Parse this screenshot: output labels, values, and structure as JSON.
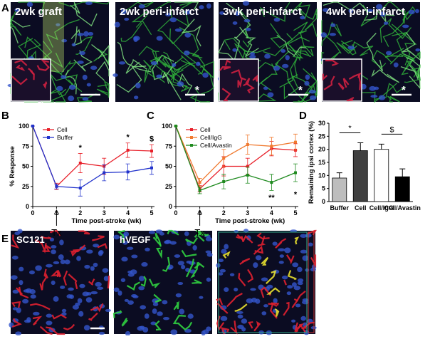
{
  "panel_labels": [
    "A",
    "B",
    "C",
    "D",
    "E"
  ],
  "images_a": [
    {
      "label": "2wk graft"
    },
    {
      "label": "2wk peri-infarct",
      "marker": "*"
    },
    {
      "label": "3wk peri-infarct",
      "marker": "*"
    },
    {
      "label": "4wk peri-infarct",
      "marker": "*"
    }
  ],
  "images_e": [
    {
      "label": "SC121"
    },
    {
      "label": "hVEGF"
    },
    {}
  ],
  "chart_data": [
    {
      "type": "line",
      "x": [
        0,
        1,
        2,
        3,
        4,
        5
      ],
      "xlim": [
        0,
        5
      ],
      "ylim": [
        0,
        100
      ],
      "xticks": [
        0,
        1,
        2,
        3,
        4,
        5
      ],
      "yticks": [
        0,
        25,
        50,
        75,
        100
      ],
      "xlabel": "Time post-stroke (wk)",
      "ylabel": "% Response",
      "arrow_x": 1,
      "arrow_label": "Tx",
      "series": [
        {
          "name": "Cell",
          "color": "#e8202a",
          "values": [
            100,
            25,
            54,
            50,
            70,
            69
          ],
          "errors": [
            0,
            4,
            12,
            10,
            9,
            8
          ]
        },
        {
          "name": "Buffer",
          "color": "#2233cc",
          "values": [
            100,
            25,
            23,
            42,
            43,
            48
          ],
          "errors": [
            0,
            3,
            10,
            10,
            10,
            8
          ]
        }
      ],
      "annotations": [
        {
          "x": 2,
          "y": 70,
          "text": "*"
        },
        {
          "x": 4,
          "y": 83,
          "text": "*"
        },
        {
          "x": 5,
          "y": 81,
          "text": "$"
        }
      ]
    },
    {
      "type": "line",
      "x": [
        0,
        1,
        2,
        3,
        4,
        5
      ],
      "xlim": [
        0,
        5
      ],
      "ylim": [
        0,
        100
      ],
      "xticks": [
        0,
        1,
        2,
        3,
        4,
        5
      ],
      "yticks": [
        0,
        25,
        50,
        75,
        100
      ],
      "xlabel": "Time post-stroke (wk)",
      "ylabel": "% Response",
      "arrow_x": 1,
      "arrow_label": "Tx",
      "series": [
        {
          "name": "Cell",
          "color": "#e8202a",
          "values": [
            100,
            22,
            50,
            50,
            72,
            70
          ],
          "errors": [
            0,
            4,
            12,
            10,
            9,
            8
          ]
        },
        {
          "name": "Cell/IgG",
          "color": "#f07a30",
          "values": [
            100,
            30,
            60,
            77,
            75,
            80
          ],
          "errors": [
            0,
            5,
            11,
            12,
            11,
            10
          ]
        },
        {
          "name": "Cell/Avastin",
          "color": "#1e8a1e",
          "values": [
            100,
            20,
            31,
            39,
            30,
            42
          ],
          "errors": [
            0,
            4,
            9,
            10,
            10,
            11
          ]
        }
      ],
      "annotations": [
        {
          "x": 4,
          "y": 8,
          "text": "**"
        },
        {
          "x": 5,
          "y": 12,
          "text": "*"
        }
      ]
    },
    {
      "type": "bar",
      "categories": [
        "Buffer",
        "Cell",
        "Cell/IgG",
        "Cell/Avastin"
      ],
      "values": [
        9,
        19.5,
        20,
        9.5
      ],
      "errors": [
        2,
        3,
        2,
        3
      ],
      "colors": [
        "#bdbdbd",
        "#404040",
        "#ffffff",
        "#000000"
      ],
      "ylim": [
        0,
        30
      ],
      "yticks": [
        0,
        5,
        10,
        15,
        20,
        25,
        30
      ],
      "ylabel": "Remaining ipsi cortex (%)",
      "brackets": [
        {
          "from": 0,
          "to": 1,
          "text": "*"
        },
        {
          "from": 2,
          "to": 3,
          "text": "$"
        }
      ]
    }
  ]
}
